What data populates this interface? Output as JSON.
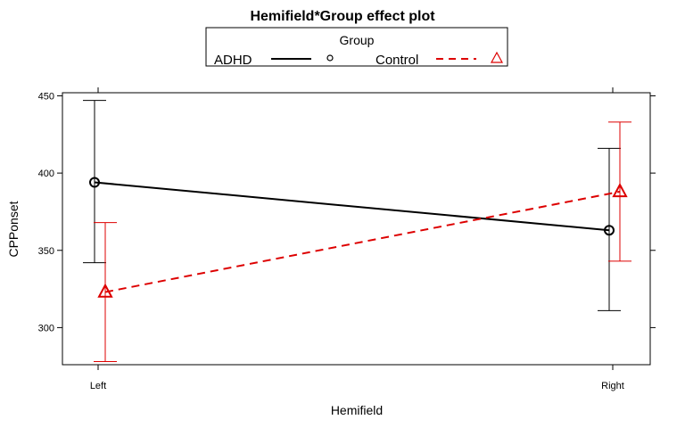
{
  "chart_data": {
    "type": "line",
    "title": "Hemifield*Group effect plot",
    "xlabel": "Hemifield",
    "ylabel": "CPPonset",
    "categories": [
      "Left",
      "Right"
    ],
    "ylim": [
      276,
      452
    ],
    "yticks": [
      300,
      350,
      400,
      450
    ],
    "legend": {
      "title": "Group",
      "placement": "top"
    },
    "series": [
      {
        "name": "ADHD",
        "values": [
          394,
          363
        ],
        "lower": [
          342,
          311
        ],
        "upper": [
          447,
          416
        ],
        "color": "#000000",
        "line_style": "solid",
        "marker": "circle"
      },
      {
        "name": "Control",
        "values": [
          323,
          388
        ],
        "lower": [
          278,
          343
        ],
        "upper": [
          368,
          433
        ],
        "color": "#dd0000",
        "line_style": "dashed",
        "marker": "triangle"
      }
    ]
  }
}
